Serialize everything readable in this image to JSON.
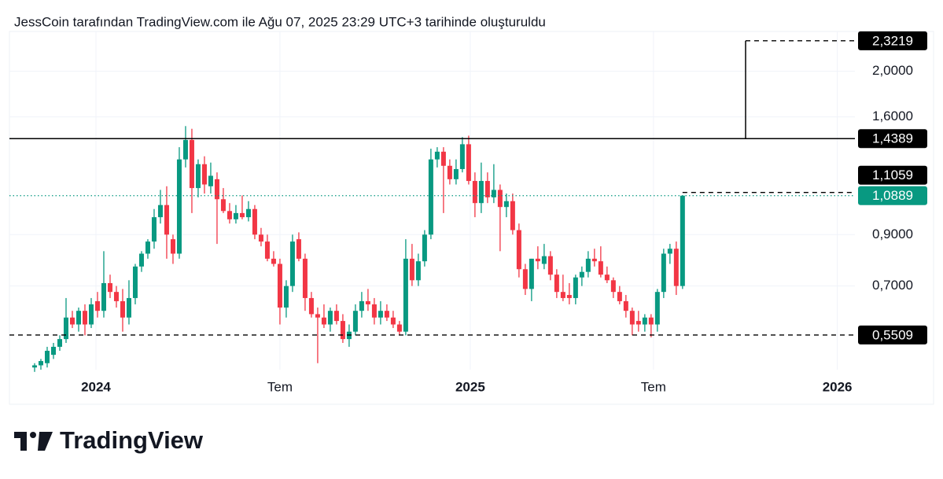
{
  "header": {
    "text": "JessCoin tarafından TradingView.com ile Ağu 07, 2025 23:29 UTC+3 tarihinde oluşturuldu"
  },
  "chart_data": {
    "type": "candlestick",
    "up_color": "#089981",
    "down_color": "#f23645",
    "log_scale": true,
    "grid": true,
    "ylim": [
      0.465,
      2.43
    ],
    "yticks": [
      {
        "value": 0.7,
        "label": "0,7000"
      },
      {
        "value": 0.9,
        "label": "0,9000"
      },
      {
        "value": 1.6,
        "label": "1,6000"
      },
      {
        "value": 2.0,
        "label": "2,0000"
      }
    ],
    "xlim": [
      -4,
      130.4
    ],
    "xticks": [
      {
        "value": 9.75,
        "label": "2024"
      },
      {
        "value": 39,
        "label": "Tem"
      },
      {
        "value": 69.25,
        "label": "2025"
      },
      {
        "value": 98.375,
        "label": "Tem"
      },
      {
        "value": 127.6,
        "label": "2026"
      }
    ],
    "open": [
      0.47,
      0.475,
      0.48,
      0.5,
      0.52,
      0.54,
      0.6,
      0.58,
      0.62,
      0.58,
      0.65,
      0.62,
      0.71,
      0.68,
      0.65,
      0.6,
      0.66,
      0.77,
      0.82,
      0.87,
      0.98,
      1.04,
      0.88,
      0.82,
      1.3,
      1.43,
      1.13,
      1.27,
      1.14,
      1.18,
      1.07,
      1.01,
      0.97,
      1.0,
      0.98,
      1.02,
      0.9,
      0.87,
      0.8,
      0.78,
      0.63,
      0.7,
      0.88,
      0.8,
      0.66,
      0.61,
      0.6,
      0.58,
      0.62,
      0.59,
      0.54,
      0.56,
      0.62,
      0.65,
      0.64,
      0.6,
      0.62,
      0.6,
      0.58,
      0.56,
      0.8,
      0.72,
      0.79,
      0.9,
      1.3,
      1.35,
      1.26,
      1.18,
      1.24,
      1.4,
      1.17,
      1.05,
      1.17,
      1.08,
      1.12,
      1.03,
      1.06,
      0.92,
      0.76,
      0.69,
      0.8,
      0.78,
      0.81,
      0.74,
      0.68,
      0.67,
      0.66,
      0.73,
      0.75,
      0.8,
      0.79,
      0.74,
      0.72,
      0.68,
      0.65,
      0.62,
      0.59,
      0.58,
      0.6,
      0.58,
      0.68,
      0.82,
      0.84,
      0.7
    ],
    "high": [
      0.48,
      0.49,
      0.52,
      0.53,
      0.55,
      0.66,
      0.62,
      0.63,
      0.64,
      0.66,
      0.68,
      0.83,
      0.74,
      0.7,
      0.69,
      0.72,
      0.78,
      0.83,
      0.88,
      1.02,
      1.12,
      1.14,
      0.9,
      1.38,
      1.53,
      1.51,
      1.3,
      1.32,
      1.28,
      1.22,
      1.13,
      1.05,
      1.04,
      1.09,
      1.06,
      1.04,
      0.93,
      0.9,
      0.83,
      0.8,
      0.72,
      0.9,
      0.91,
      0.82,
      0.68,
      0.63,
      0.64,
      0.63,
      0.64,
      0.61,
      0.58,
      0.64,
      0.68,
      0.69,
      0.66,
      0.65,
      0.64,
      0.62,
      0.59,
      0.88,
      0.86,
      0.82,
      0.92,
      1.37,
      1.38,
      1.38,
      1.3,
      1.3,
      1.45,
      1.46,
      1.22,
      1.28,
      1.22,
      1.27,
      1.15,
      1.1,
      1.1,
      0.95,
      0.78,
      0.8,
      0.85,
      0.86,
      0.83,
      0.76,
      0.74,
      0.71,
      0.74,
      0.77,
      0.83,
      0.84,
      0.85,
      0.77,
      0.73,
      0.7,
      0.67,
      0.63,
      0.62,
      0.61,
      0.61,
      0.69,
      0.84,
      0.86,
      0.87,
      1.09
    ],
    "low": [
      0.46,
      0.465,
      0.47,
      0.49,
      0.51,
      0.53,
      0.57,
      0.56,
      0.55,
      0.57,
      0.6,
      0.6,
      0.66,
      0.63,
      0.56,
      0.58,
      0.64,
      0.75,
      0.8,
      0.84,
      0.95,
      0.8,
      0.78,
      0.8,
      1.25,
      1.0,
      1.08,
      1.1,
      1.1,
      0.86,
      1.0,
      0.95,
      0.95,
      0.97,
      0.96,
      0.88,
      0.85,
      0.79,
      0.77,
      0.58,
      0.6,
      0.68,
      0.79,
      0.62,
      0.6,
      0.48,
      0.57,
      0.56,
      0.58,
      0.53,
      0.52,
      0.55,
      0.6,
      0.62,
      0.58,
      0.58,
      0.59,
      0.57,
      0.55,
      0.55,
      0.7,
      0.7,
      0.77,
      0.88,
      1.25,
      1.0,
      1.15,
      1.15,
      1.22,
      1.15,
      0.98,
      1.0,
      1.05,
      1.05,
      0.83,
      0.98,
      0.9,
      0.73,
      0.67,
      0.65,
      0.76,
      0.76,
      0.72,
      0.66,
      0.65,
      0.64,
      0.64,
      0.7,
      0.73,
      0.77,
      0.73,
      0.71,
      0.66,
      0.64,
      0.6,
      0.55,
      0.56,
      0.56,
      0.545,
      0.56,
      0.66,
      0.78,
      0.67,
      0.69
    ],
    "close": [
      0.475,
      0.485,
      0.51,
      0.52,
      0.54,
      0.6,
      0.58,
      0.62,
      0.58,
      0.64,
      0.62,
      0.71,
      0.68,
      0.65,
      0.6,
      0.66,
      0.77,
      0.82,
      0.87,
      0.98,
      1.04,
      0.9,
      0.82,
      1.3,
      1.43,
      1.13,
      1.27,
      1.15,
      1.2,
      1.07,
      1.01,
      0.97,
      1.0,
      0.98,
      1.02,
      0.9,
      0.87,
      0.8,
      0.78,
      0.63,
      0.7,
      0.87,
      0.8,
      0.66,
      0.61,
      0.6,
      0.58,
      0.62,
      0.59,
      0.54,
      0.56,
      0.62,
      0.65,
      0.64,
      0.6,
      0.62,
      0.6,
      0.58,
      0.56,
      0.8,
      0.72,
      0.79,
      0.9,
      1.3,
      1.35,
      1.26,
      1.18,
      1.24,
      1.4,
      1.17,
      1.05,
      1.17,
      1.08,
      1.12,
      1.03,
      1.06,
      0.92,
      0.76,
      0.69,
      0.8,
      0.79,
      0.81,
      0.74,
      0.68,
      0.66,
      0.66,
      0.73,
      0.75,
      0.8,
      0.79,
      0.74,
      0.72,
      0.68,
      0.65,
      0.62,
      0.58,
      0.58,
      0.6,
      0.58,
      0.68,
      0.82,
      0.84,
      0.7,
      1.0889
    ],
    "levels": [
      {
        "value": 2.3219,
        "label": "2,3219",
        "style": "dashed",
        "color": "#000000"
      },
      {
        "value": 1.4389,
        "label": "1,4389",
        "style": "solid",
        "color": "#000000"
      },
      {
        "value": 1.1059,
        "label": "1,1059",
        "style": "dashed",
        "color": "#000000"
      },
      {
        "value": 1.0889,
        "label": "1,0889",
        "style": "dotted",
        "color": "#089981"
      },
      {
        "value": 0.5509,
        "label": "0,5509",
        "style": "dashed",
        "color": "#000000"
      }
    ]
  },
  "footer": {
    "brand": "TradingView"
  }
}
